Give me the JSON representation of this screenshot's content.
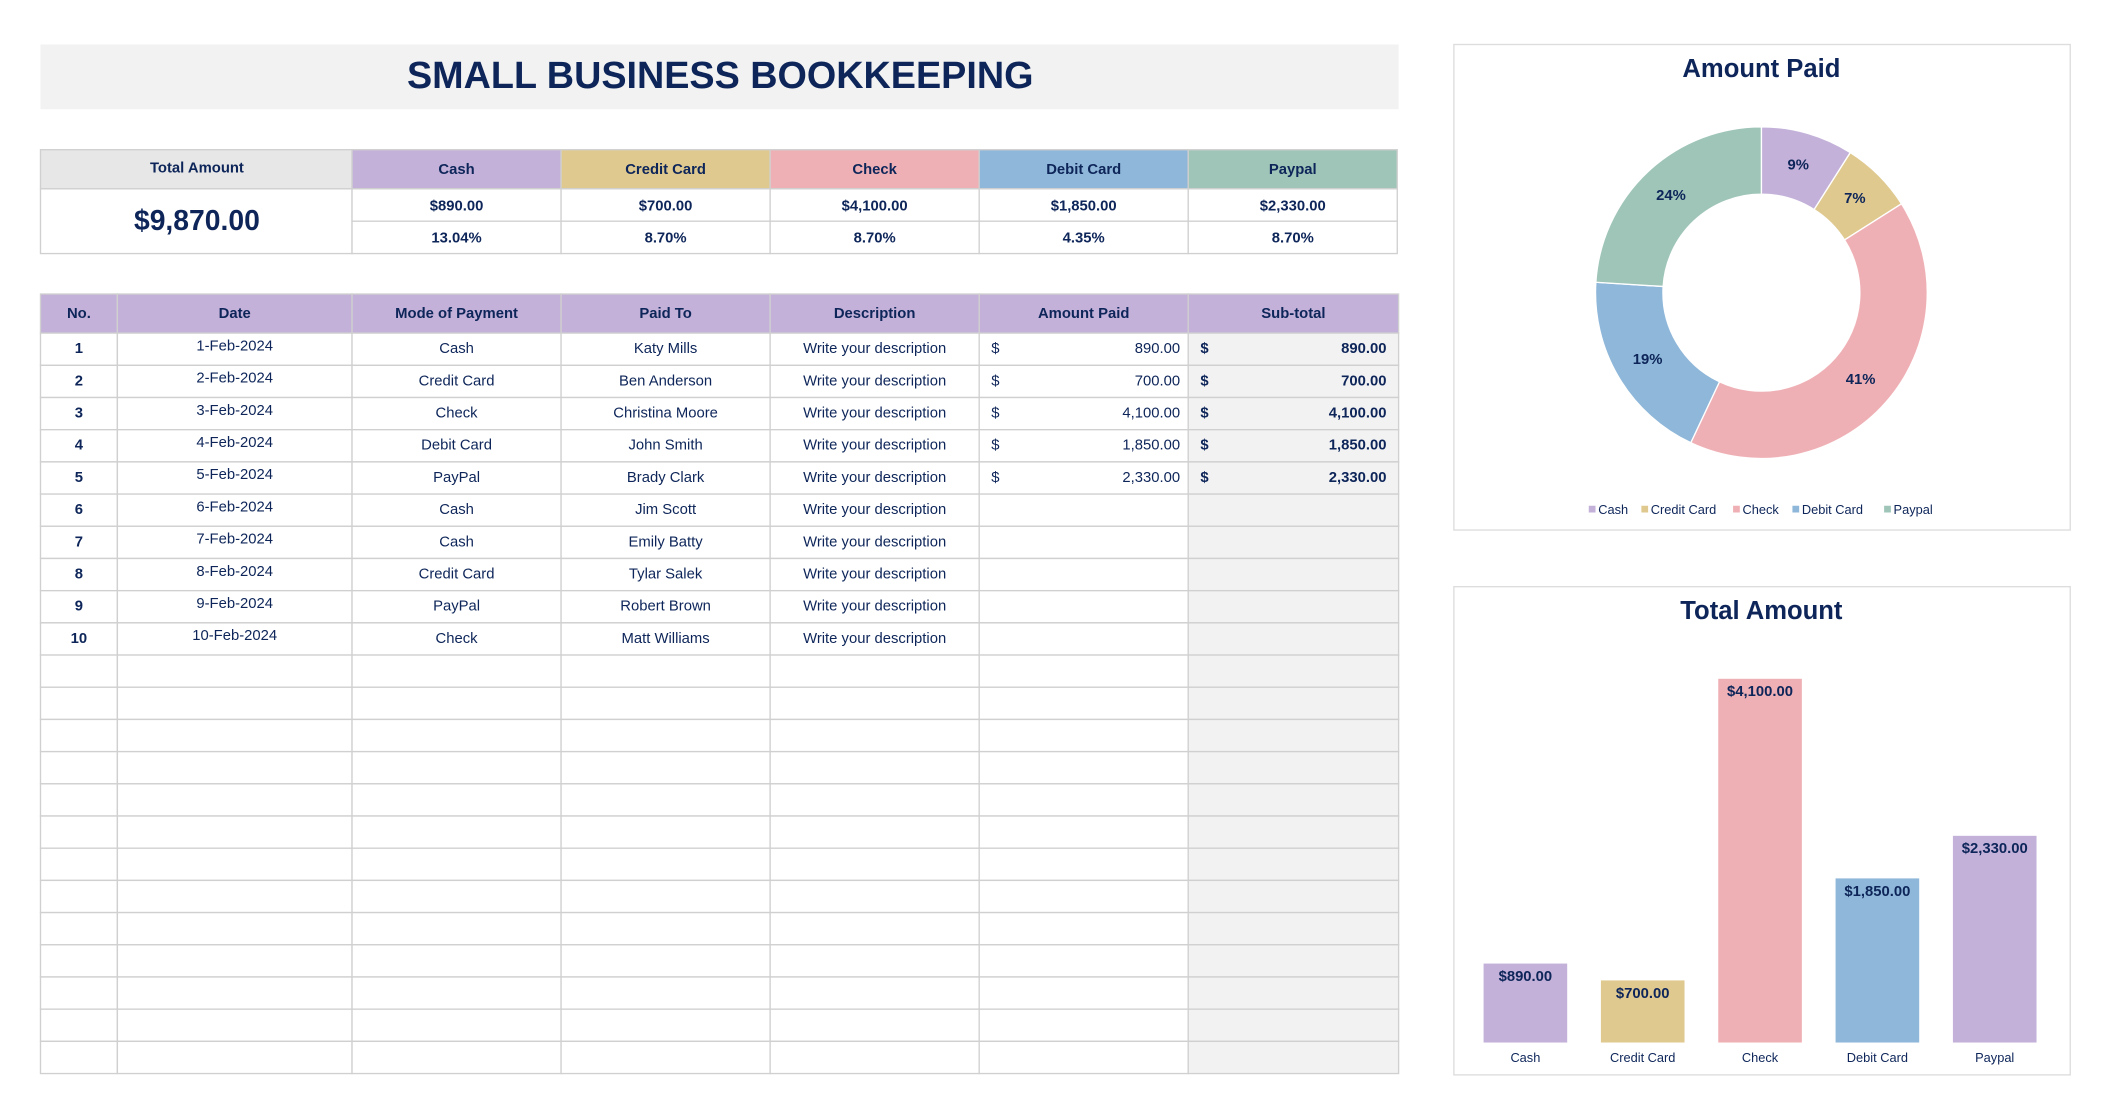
{
  "title": "SMALL BUSINESS BOOKKEEPING",
  "summary": {
    "label": "Total Amount",
    "total": "$9,870.00",
    "methods": [
      {
        "name": "Cash",
        "amount": "$890.00",
        "percent": "13.04%",
        "color": "#c3b1d9"
      },
      {
        "name": "Credit Card",
        "amount": "$700.00",
        "percent": "8.70%",
        "color": "#dfc98f"
      },
      {
        "name": "Check",
        "amount": "$4,100.00",
        "percent": "8.70%",
        "color": "#efb0b5"
      },
      {
        "name": "Debit Card",
        "amount": "$1,850.00",
        "percent": "4.35%",
        "color": "#8fb7d9"
      },
      {
        "name": "Paypal",
        "amount": "$2,330.00",
        "percent": "8.70%",
        "color": "#9fc5b8"
      }
    ]
  },
  "table": {
    "columns": [
      "No.",
      "Date",
      "Mode of Payment",
      "Paid To",
      "Description",
      "Amount Paid",
      "Sub-total"
    ],
    "rows": [
      {
        "no": "1",
        "date": "1-Feb-2024",
        "mode": "Cash",
        "paid_to": "Katy Mills",
        "description": "Write your description",
        "currency": "$",
        "amount": "890.00",
        "subtotal_currency": "$",
        "subtotal": "890.00"
      },
      {
        "no": "2",
        "date": "2-Feb-2024",
        "mode": "Credit Card",
        "paid_to": "Ben Anderson",
        "description": "Write your description",
        "currency": "$",
        "amount": "700.00",
        "subtotal_currency": "$",
        "subtotal": "700.00"
      },
      {
        "no": "3",
        "date": "3-Feb-2024",
        "mode": "Check",
        "paid_to": "Christina Moore",
        "description": "Write your description",
        "currency": "$",
        "amount": "4,100.00",
        "subtotal_currency": "$",
        "subtotal": "4,100.00"
      },
      {
        "no": "4",
        "date": "4-Feb-2024",
        "mode": "Debit Card",
        "paid_to": "John Smith",
        "description": "Write your description",
        "currency": "$",
        "amount": "1,850.00",
        "subtotal_currency": "$",
        "subtotal": "1,850.00"
      },
      {
        "no": "5",
        "date": "5-Feb-2024",
        "mode": "PayPal",
        "paid_to": "Brady Clark",
        "description": "Write your description",
        "currency": "$",
        "amount": "2,330.00",
        "subtotal_currency": "$",
        "subtotal": "2,330.00"
      },
      {
        "no": "6",
        "date": "6-Feb-2024",
        "mode": "Cash",
        "paid_to": "Jim  Scott",
        "description": "Write your description"
      },
      {
        "no": "7",
        "date": "7-Feb-2024",
        "mode": "Cash",
        "paid_to": "Emily Batty",
        "description": "Write your description"
      },
      {
        "no": "8",
        "date": "8-Feb-2024",
        "mode": "Credit Card",
        "paid_to": "Tylar Salek",
        "description": "Write your description"
      },
      {
        "no": "9",
        "date": "9-Feb-2024",
        "mode": "PayPal",
        "paid_to": "Robert Brown",
        "description": "Write your description"
      },
      {
        "no": "10",
        "date": "10-Feb-2024",
        "mode": "Check",
        "paid_to": "Matt Williams",
        "description": "Write your description"
      }
    ]
  },
  "chart_data": [
    {
      "type": "pie",
      "title": "Amount Paid",
      "donut": true,
      "categories": [
        "Cash",
        "Credit Card",
        "Check",
        "Debit Card",
        "Paypal"
      ],
      "values": [
        9,
        7,
        41,
        19,
        24
      ],
      "value_labels": [
        "9%",
        "7%",
        "41%",
        "19%",
        "24%"
      ],
      "colors": [
        "#c3b1d9",
        "#dfc98f",
        "#efb0b5",
        "#8fb7d9",
        "#9fc5b8"
      ],
      "legend": "bottom"
    },
    {
      "type": "bar",
      "title": "Total Amount",
      "categories": [
        "Cash",
        "Credit Card",
        "Check",
        "Debit Card",
        "Paypal"
      ],
      "values": [
        890,
        700,
        4100,
        1850,
        2330
      ],
      "value_labels": [
        "$890.00",
        "$700.00",
        "$4,100.00",
        "$1,850.00",
        "$2,330.00"
      ],
      "colors": [
        "#c3b1d9",
        "#dfc98f",
        "#efb0b5",
        "#8fb7d9",
        "#c3b1d9"
      ],
      "ylim": [
        0,
        4500
      ],
      "grid": false
    }
  ]
}
